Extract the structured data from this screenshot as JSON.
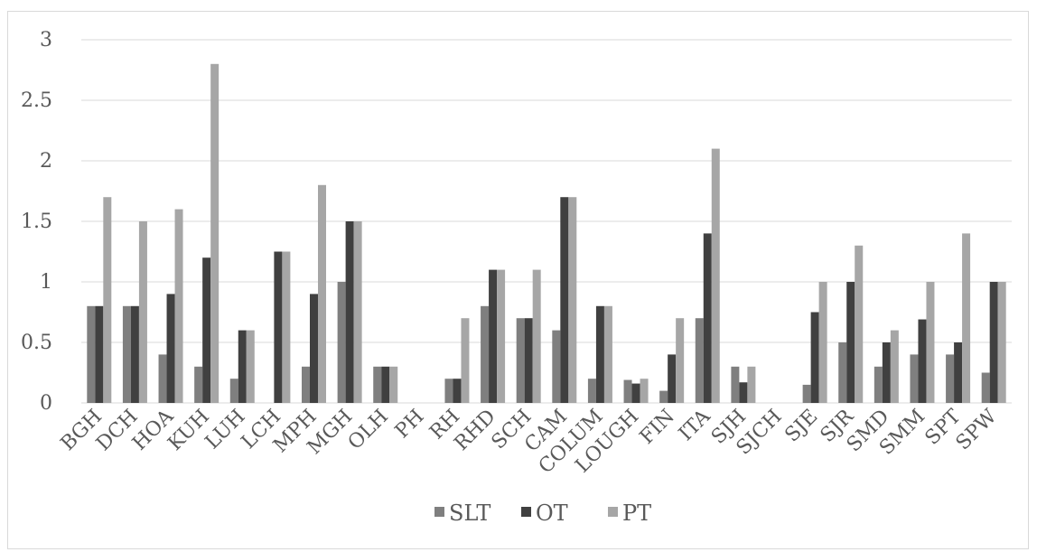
{
  "chart_data": {
    "type": "bar",
    "title": "",
    "xlabel": "",
    "ylabel": "",
    "ylim": [
      0,
      3
    ],
    "yticks": [
      0,
      0.5,
      1,
      1.5,
      2,
      2.5,
      3
    ],
    "ytick_labels": [
      "0",
      "0.5",
      "1",
      "1.5",
      "2",
      "2.5",
      "3"
    ],
    "grid": "horizontal",
    "legend_position": "bottom",
    "categories": [
      "BGH",
      "DCH",
      "HOA",
      "KUH",
      "LUH",
      "LCH",
      "MPH",
      "MGH",
      "OLH",
      "PH",
      "RH",
      "RHD",
      "SCH",
      "CAM",
      "COLUM",
      "LOUGH",
      "FIN",
      "ITA",
      "SJH",
      "SJCH",
      "SJE",
      "SJR",
      "SMD",
      "SMM",
      "SPT",
      "SPW"
    ],
    "series": [
      {
        "name": "SLT",
        "color": "#7f7f7f",
        "values": [
          0.8,
          0.8,
          0.4,
          0.3,
          0.2,
          0,
          0.3,
          1.0,
          0.3,
          0,
          0.2,
          0.8,
          0.7,
          0.6,
          0.2,
          0.19,
          0.1,
          0.7,
          0.3,
          0,
          0.15,
          0.5,
          0.3,
          0.4,
          0.4,
          0.25
        ]
      },
      {
        "name": "OT",
        "color": "#404040",
        "values": [
          0.8,
          0.8,
          0.9,
          1.2,
          0.6,
          1.25,
          0.9,
          1.5,
          0.3,
          0,
          0.2,
          1.1,
          0.7,
          1.7,
          0.8,
          0.16,
          0.4,
          1.4,
          0.17,
          0,
          0.75,
          1.0,
          0.5,
          0.69,
          0.5,
          1.0
        ]
      },
      {
        "name": "PT",
        "color": "#a6a6a6",
        "values": [
          1.7,
          1.5,
          1.6,
          2.8,
          0.6,
          1.25,
          1.8,
          1.5,
          0.3,
          0,
          0.7,
          1.1,
          1.1,
          1.7,
          0.8,
          0.2,
          0.7,
          2.1,
          0.3,
          0,
          1.0,
          1.3,
          0.6,
          1.0,
          1.4,
          1.0
        ]
      }
    ]
  }
}
